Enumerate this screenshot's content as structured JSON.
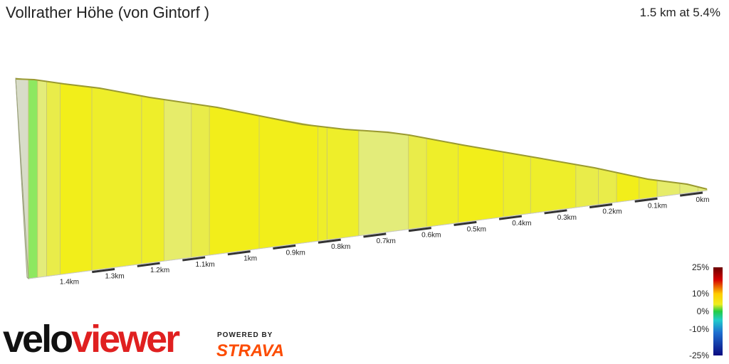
{
  "header": {
    "title": "Vollrather Höhe (von Gintorf )",
    "summary": "1.5 km at 5.4%"
  },
  "branding": {
    "logo_part1": "velo",
    "logo_part2": "viewer",
    "powered_by": "POWERED BY",
    "strava": "STRAVA"
  },
  "chart_data": {
    "type": "area",
    "tick_labels": [
      "0km",
      "0.1km",
      "0.2km",
      "0.3km",
      "0.4km",
      "0.5km",
      "0.6km",
      "0.7km",
      "0.8km",
      "0.9km",
      "1km",
      "1.1km",
      "1.2km",
      "1.3km",
      "1.4km"
    ],
    "distance_km": 1.5,
    "average_gradient_pct": 5.4,
    "segments": [
      {
        "start_km": 0.0,
        "end_km": 0.02,
        "gradient_pct": 2,
        "color": "#e3ec7a"
      },
      {
        "start_km": 0.02,
        "end_km": 0.06,
        "gradient_pct": 3,
        "color": "#e3ec7a"
      },
      {
        "start_km": 0.06,
        "end_km": 0.11,
        "gradient_pct": 4,
        "color": "#e6ec6a"
      },
      {
        "start_km": 0.11,
        "end_km": 0.15,
        "gradient_pct": 6,
        "color": "#eeee2a"
      },
      {
        "start_km": 0.15,
        "end_km": 0.2,
        "gradient_pct": 7,
        "color": "#f2ee1a"
      },
      {
        "start_km": 0.2,
        "end_km": 0.24,
        "gradient_pct": 5,
        "color": "#e9ec4a"
      },
      {
        "start_km": 0.24,
        "end_km": 0.29,
        "gradient_pct": 5,
        "color": "#e9ec4a"
      },
      {
        "start_km": 0.29,
        "end_km": 0.39,
        "gradient_pct": 6,
        "color": "#eeee2a"
      },
      {
        "start_km": 0.39,
        "end_km": 0.45,
        "gradient_pct": 6,
        "color": "#eeee2a"
      },
      {
        "start_km": 0.45,
        "end_km": 0.55,
        "gradient_pct": 7,
        "color": "#f2ee1a"
      },
      {
        "start_km": 0.55,
        "end_km": 0.62,
        "gradient_pct": 6,
        "color": "#eeee2a"
      },
      {
        "start_km": 0.62,
        "end_km": 0.66,
        "gradient_pct": 5,
        "color": "#e9ec4a"
      },
      {
        "start_km": 0.66,
        "end_km": 0.77,
        "gradient_pct": 2,
        "color": "#e3ec7a"
      },
      {
        "start_km": 0.77,
        "end_km": 0.84,
        "gradient_pct": 6,
        "color": "#eeee2a"
      },
      {
        "start_km": 0.84,
        "end_km": 0.86,
        "gradient_pct": 6,
        "color": "#eeee2a"
      },
      {
        "start_km": 0.86,
        "end_km": 0.99,
        "gradient_pct": 7,
        "color": "#f2ee1a"
      },
      {
        "start_km": 0.99,
        "end_km": 1.1,
        "gradient_pct": 7,
        "color": "#f2ee1a"
      },
      {
        "start_km": 1.1,
        "end_km": 1.14,
        "gradient_pct": 5,
        "color": "#e9ec4a"
      },
      {
        "start_km": 1.14,
        "end_km": 1.2,
        "gradient_pct": 4,
        "color": "#e6ec6a"
      },
      {
        "start_km": 1.2,
        "end_km": 1.25,
        "gradient_pct": 6,
        "color": "#eeee2a"
      },
      {
        "start_km": 1.25,
        "end_km": 1.36,
        "gradient_pct": 6,
        "color": "#eeee2a"
      },
      {
        "start_km": 1.36,
        "end_km": 1.43,
        "gradient_pct": 7,
        "color": "#f2ee1a"
      },
      {
        "start_km": 1.43,
        "end_km": 1.46,
        "gradient_pct": 5,
        "color": "#e9ec4a"
      },
      {
        "start_km": 1.46,
        "end_km": 1.48,
        "gradient_pct": 2,
        "color": "#e3ec7a"
      },
      {
        "start_km": 1.48,
        "end_km": 1.5,
        "gradient_pct": 0,
        "color": "#8ee860"
      }
    ],
    "color_scale": {
      "labels": [
        "25%",
        "10%",
        "0%",
        "-10%",
        "-25%"
      ],
      "stops": [
        {
          "value": 25,
          "color": "#6b0000"
        },
        {
          "value": 18,
          "color": "#d40000"
        },
        {
          "value": 10,
          "color": "#ffcc00"
        },
        {
          "value": 4,
          "color": "#eeee22"
        },
        {
          "value": 0,
          "color": "#22cc44"
        },
        {
          "value": -5,
          "color": "#22cccc"
        },
        {
          "value": -12,
          "color": "#1f6fd0"
        },
        {
          "value": -25,
          "color": "#0a0a80"
        }
      ]
    }
  }
}
